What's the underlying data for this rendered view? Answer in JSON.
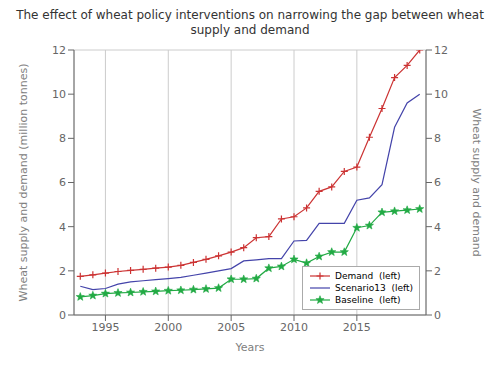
{
  "chart_data": {
    "type": "line",
    "title": "The effect of wheat policy interventions on narrowing the gap between wheat supply and demand",
    "xlabel": "Years",
    "ylabel": "Wheat supply and demand (million tonnes)",
    "y2label": "Wheat supply and demand",
    "xlim": [
      1992.5,
      2020.5
    ],
    "xticks": [
      1995,
      2000,
      2005,
      2010,
      2015
    ],
    "ylim": [
      0,
      12
    ],
    "yticks": [
      0,
      2,
      4,
      6,
      8,
      10,
      12
    ],
    "y2lim": [
      0,
      12
    ],
    "y2ticks": [
      0,
      2,
      4,
      6,
      8,
      10,
      12
    ],
    "grid": true,
    "legend": "lower right",
    "x": [
      1993,
      1994,
      1995,
      1996,
      1997,
      1998,
      1999,
      2000,
      2001,
      2002,
      2003,
      2004,
      2005,
      2006,
      2007,
      2008,
      2009,
      2010,
      2011,
      2012,
      2013,
      2014,
      2015,
      2016,
      2017,
      2018,
      2019,
      2020
    ],
    "series": [
      {
        "name": "Demand  (left)",
        "color": "#cc3333",
        "marker": "plus",
        "values": [
          1.75,
          1.82,
          1.9,
          1.97,
          2.02,
          2.07,
          2.12,
          2.17,
          2.25,
          2.38,
          2.52,
          2.68,
          2.85,
          3.05,
          3.5,
          3.55,
          4.35,
          4.45,
          4.85,
          5.6,
          5.8,
          6.5,
          6.7,
          8.05,
          9.35,
          10.75,
          11.3,
          12.0
        ]
      },
      {
        "name": "Scenario13  (left)",
        "color": "#4444aa",
        "marker": "none",
        "values": [
          1.3,
          1.15,
          1.2,
          1.4,
          1.5,
          1.55,
          1.6,
          1.65,
          1.7,
          1.8,
          1.9,
          2.0,
          2.1,
          2.45,
          2.5,
          2.55,
          2.55,
          3.35,
          3.38,
          4.15,
          4.15,
          4.15,
          5.2,
          5.3,
          5.9,
          8.5,
          9.6,
          10.0
        ]
      },
      {
        "name": "Baseline  (left)",
        "color": "#22aa44",
        "marker": "star",
        "values": [
          0.82,
          0.88,
          0.97,
          1.0,
          1.02,
          1.05,
          1.07,
          1.1,
          1.12,
          1.15,
          1.18,
          1.22,
          1.62,
          1.62,
          1.65,
          2.12,
          2.2,
          2.52,
          2.35,
          2.65,
          2.85,
          2.85,
          3.95,
          4.05,
          4.65,
          4.7,
          4.75,
          4.8
        ]
      }
    ]
  }
}
